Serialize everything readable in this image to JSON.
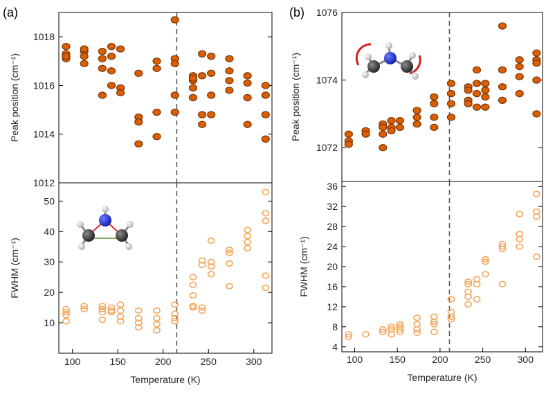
{
  "figure": {
    "panel_labels": [
      "(a)",
      "(b)"
    ],
    "temperature_label": "Temperature (K)",
    "colors": {
      "filled_marker": "#d95f02",
      "filled_edge": "#7a3306",
      "open_marker": "#f5a65b"
    },
    "molecule_icons": [
      "molecule-icon-rotating",
      "molecule-icon-stretching"
    ]
  },
  "chart_data": [
    {
      "id": "a-top",
      "type": "scatter",
      "ylabel": "Peak position (cm⁻¹)",
      "ylim": [
        1012,
        1019
      ],
      "yticks": [
        1014,
        1016,
        1018
      ],
      "ytick_labels": [
        "1014",
        "1016",
        "1018"
      ],
      "bottom_label": "1012",
      "xlim": [
        85,
        320
      ],
      "marker": "filled",
      "points": [
        [
          93,
          1017.6
        ],
        [
          93,
          1017.3
        ],
        [
          93,
          1017.1
        ],
        [
          93,
          1017.2
        ],
        [
          113,
          1017.4
        ],
        [
          113,
          1017.2
        ],
        [
          113,
          1016.9
        ],
        [
          113,
          1017.5
        ],
        [
          133,
          1017.4
        ],
        [
          133,
          1017.1
        ],
        [
          133,
          1016.7
        ],
        [
          133,
          1015.6
        ],
        [
          143,
          1017.6
        ],
        [
          143,
          1017.2
        ],
        [
          143,
          1016.6
        ],
        [
          143,
          1016.0
        ],
        [
          153,
          1017.5
        ],
        [
          153,
          1015.9
        ],
        [
          153,
          1015.7
        ],
        [
          173,
          1016.5
        ],
        [
          173,
          1014.7
        ],
        [
          173,
          1014.5
        ],
        [
          173,
          1013.6
        ],
        [
          193,
          1017.0
        ],
        [
          193,
          1016.7
        ],
        [
          193,
          1014.9
        ],
        [
          193,
          1013.9
        ],
        [
          213,
          1018.7
        ],
        [
          213,
          1017.1
        ],
        [
          213,
          1016.9
        ],
        [
          213,
          1015.6
        ],
        [
          213,
          1014.9
        ],
        [
          233,
          1016.4
        ],
        [
          233,
          1016.2
        ],
        [
          233,
          1015.9
        ],
        [
          233,
          1015.5
        ],
        [
          233,
          1016.3
        ],
        [
          243,
          1017.3
        ],
        [
          243,
          1016.4
        ],
        [
          243,
          1014.8
        ],
        [
          243,
          1014.4
        ],
        [
          253,
          1017.2
        ],
        [
          253,
          1016.5
        ],
        [
          253,
          1015.6
        ],
        [
          253,
          1014.8
        ],
        [
          273,
          1017.1
        ],
        [
          273,
          1016.6
        ],
        [
          273,
          1016.2
        ],
        [
          273,
          1015.8
        ],
        [
          293,
          1016.4
        ],
        [
          293,
          1016.1
        ],
        [
          293,
          1015.5
        ],
        [
          293,
          1014.4
        ],
        [
          313,
          1016.0
        ],
        [
          313,
          1015.6
        ],
        [
          313,
          1014.8
        ],
        [
          313,
          1013.8
        ]
      ],
      "transition_temperature": 215
    },
    {
      "id": "a-bottom",
      "type": "scatter",
      "ylabel": "FWHM (cm⁻¹)",
      "xlabel": "Temperature (K)",
      "ylim": [
        0,
        56
      ],
      "yticks": [
        10,
        20,
        30,
        40,
        50
      ],
      "ytick_labels": [
        "10",
        "20",
        "30",
        "40",
        "50"
      ],
      "xticks": [
        100,
        150,
        200,
        250,
        300
      ],
      "xtick_labels": [
        "100",
        "150",
        "200",
        "250",
        "300"
      ],
      "xlim": [
        85,
        320
      ],
      "marker": "open",
      "points": [
        [
          93,
          14.5
        ],
        [
          93,
          13.5
        ],
        [
          93,
          12.5
        ],
        [
          93,
          10.5
        ],
        [
          113,
          15.5
        ],
        [
          113,
          14.5
        ],
        [
          133,
          15.5
        ],
        [
          133,
          14.5
        ],
        [
          133,
          13.5
        ],
        [
          133,
          11.0
        ],
        [
          143,
          15.0
        ],
        [
          143,
          14.0
        ],
        [
          143,
          13.5
        ],
        [
          153,
          16.0
        ],
        [
          153,
          14.0
        ],
        [
          153,
          12.0
        ],
        [
          153,
          10.5
        ],
        [
          173,
          14.0
        ],
        [
          173,
          11.5
        ],
        [
          173,
          10.0
        ],
        [
          173,
          8.5
        ],
        [
          193,
          14.0
        ],
        [
          193,
          11.5
        ],
        [
          193,
          9.5
        ],
        [
          193,
          7.5
        ],
        [
          213,
          16.0
        ],
        [
          213,
          13.0
        ],
        [
          213,
          11.5
        ],
        [
          213,
          10.5
        ],
        [
          233,
          25.0
        ],
        [
          233,
          22.5
        ],
        [
          233,
          19.0
        ],
        [
          233,
          15.5
        ],
        [
          233,
          15.0
        ],
        [
          243,
          30.5
        ],
        [
          243,
          29.0
        ],
        [
          243,
          15.0
        ],
        [
          243,
          14.0
        ],
        [
          253,
          37.0
        ],
        [
          253,
          30.0
        ],
        [
          253,
          28.5
        ],
        [
          253,
          26.0
        ],
        [
          273,
          34.0
        ],
        [
          273,
          33.0
        ],
        [
          273,
          29.5
        ],
        [
          273,
          22.0
        ],
        [
          293,
          40.5
        ],
        [
          293,
          38.5
        ],
        [
          293,
          36.5
        ],
        [
          293,
          34.5
        ],
        [
          313,
          53.0
        ],
        [
          313,
          46.0
        ],
        [
          313,
          43.5
        ],
        [
          313,
          25.5
        ],
        [
          313,
          21.5
        ]
      ],
      "transition_temperature": 215
    },
    {
      "id": "b-top",
      "type": "scatter",
      "ylabel": "Peak position (cm⁻¹)",
      "ylim": [
        1071,
        1076
      ],
      "yticks": [
        1072,
        1074,
        1076
      ],
      "ytick_labels": [
        "1072",
        "1074",
        "1076"
      ],
      "xlim": [
        85,
        320
      ],
      "marker": "filled",
      "points": [
        [
          93,
          1072.4
        ],
        [
          93,
          1072.2
        ],
        [
          93,
          1072.1
        ],
        [
          113,
          1072.5
        ],
        [
          113,
          1072.4
        ],
        [
          133,
          1072.7
        ],
        [
          133,
          1072.6
        ],
        [
          133,
          1072.4
        ],
        [
          133,
          1072.0
        ],
        [
          143,
          1072.8
        ],
        [
          143,
          1072.6
        ],
        [
          143,
          1072.5
        ],
        [
          153,
          1072.8
        ],
        [
          153,
          1072.6
        ],
        [
          173,
          1073.1
        ],
        [
          173,
          1072.9
        ],
        [
          173,
          1072.7
        ],
        [
          193,
          1073.5
        ],
        [
          193,
          1073.3
        ],
        [
          193,
          1072.9
        ],
        [
          193,
          1072.6
        ],
        [
          213,
          1073.9
        ],
        [
          213,
          1073.6
        ],
        [
          213,
          1073.3
        ],
        [
          213,
          1072.9
        ],
        [
          233,
          1073.8
        ],
        [
          233,
          1073.7
        ],
        [
          233,
          1073.4
        ],
        [
          233,
          1073.3
        ],
        [
          243,
          1074.3
        ],
        [
          243,
          1073.9
        ],
        [
          243,
          1073.6
        ],
        [
          243,
          1073.2
        ],
        [
          253,
          1073.9
        ],
        [
          253,
          1073.7
        ],
        [
          253,
          1073.5
        ],
        [
          253,
          1073.2
        ],
        [
          273,
          1075.6
        ],
        [
          273,
          1074.3
        ],
        [
          273,
          1073.8
        ],
        [
          273,
          1073.4
        ],
        [
          293,
          1074.6
        ],
        [
          293,
          1074.4
        ],
        [
          293,
          1074.1
        ],
        [
          293,
          1073.6
        ],
        [
          313,
          1074.8
        ],
        [
          313,
          1074.6
        ],
        [
          313,
          1074.5
        ],
        [
          313,
          1074.0
        ],
        [
          313,
          1073.0
        ]
      ],
      "transition_temperature": 211
    },
    {
      "id": "b-bottom",
      "type": "scatter",
      "ylabel": "FWHM (cm⁻¹)",
      "xlabel": "Temperature (K)",
      "ylim": [
        3,
        37
      ],
      "yticks": [
        4,
        8,
        12,
        16,
        20,
        24,
        28,
        32,
        36
      ],
      "ytick_labels": [
        "4",
        "8",
        "12",
        "16",
        "20",
        "24",
        "28",
        "32",
        "36"
      ],
      "xticks": [
        100,
        150,
        200,
        250,
        300
      ],
      "xtick_labels": [
        "100",
        "150",
        "200",
        "250",
        "300"
      ],
      "xlim": [
        85,
        320
      ],
      "marker": "open",
      "points": [
        [
          93,
          6.5
        ],
        [
          93,
          6.0
        ],
        [
          113,
          6.5
        ],
        [
          133,
          7.5
        ],
        [
          133,
          7.0
        ],
        [
          143,
          8.0
        ],
        [
          143,
          7.5
        ],
        [
          143,
          6.5
        ],
        [
          153,
          8.5
        ],
        [
          153,
          8.0
        ],
        [
          153,
          7.5
        ],
        [
          153,
          7.0
        ],
        [
          173,
          9.8
        ],
        [
          173,
          8.5
        ],
        [
          173,
          7.5
        ],
        [
          173,
          6.8
        ],
        [
          193,
          10.0
        ],
        [
          193,
          9.0
        ],
        [
          193,
          8.5
        ],
        [
          193,
          7.0
        ],
        [
          213,
          13.5
        ],
        [
          213,
          11.0
        ],
        [
          213,
          10.0
        ],
        [
          213,
          9.5
        ],
        [
          233,
          17.0
        ],
        [
          233,
          16.5
        ],
        [
          233,
          15.0
        ],
        [
          233,
          14.0
        ],
        [
          233,
          12.5
        ],
        [
          243,
          17.5
        ],
        [
          243,
          16.5
        ],
        [
          243,
          13.5
        ],
        [
          253,
          21.5
        ],
        [
          253,
          21.0
        ],
        [
          253,
          18.5
        ],
        [
          273,
          24.5
        ],
        [
          273,
          24.0
        ],
        [
          273,
          23.5
        ],
        [
          273,
          16.5
        ],
        [
          293,
          30.5
        ],
        [
          293,
          26.5
        ],
        [
          293,
          25.5
        ],
        [
          293,
          24.0
        ],
        [
          313,
          34.5
        ],
        [
          313,
          31.0
        ],
        [
          313,
          30.0
        ],
        [
          313,
          22.0
        ]
      ],
      "transition_temperature": 211
    }
  ]
}
